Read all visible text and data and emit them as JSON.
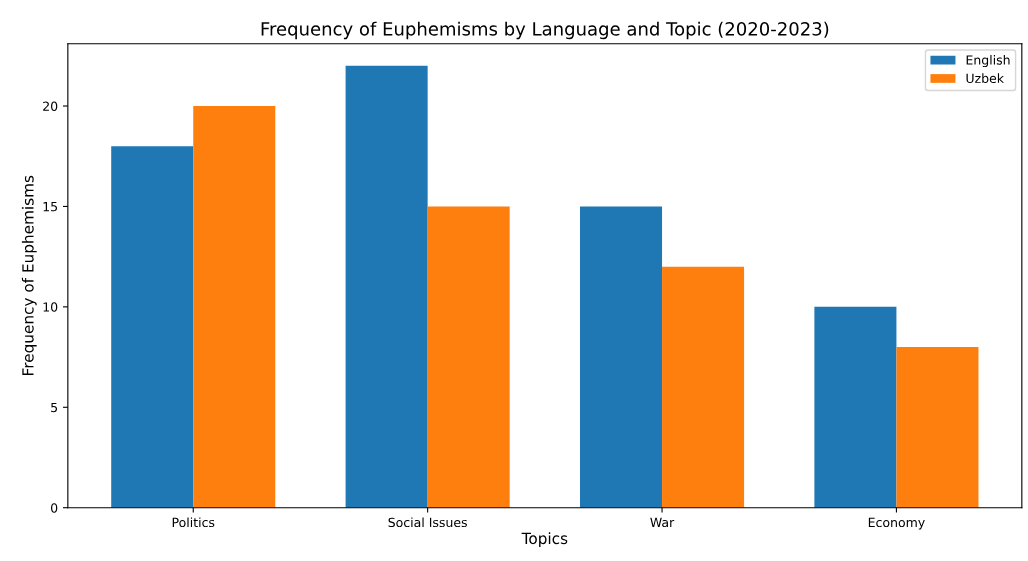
{
  "chart_data": {
    "type": "bar",
    "title": "Frequency of Euphemisms by Language and Topic (2020-2023)",
    "xlabel": "Topics",
    "ylabel": "Frequency of Euphemisms",
    "categories": [
      "Politics",
      "Social Issues",
      "War",
      "Economy"
    ],
    "series": [
      {
        "name": "English",
        "color": "#1f77b4",
        "values": [
          18,
          22,
          15,
          10
        ]
      },
      {
        "name": "Uzbek",
        "color": "#ff7f0e",
        "values": [
          20,
          15,
          12,
          8
        ]
      }
    ],
    "ylim": [
      0,
      23.1
    ],
    "yticks": [
      0,
      5,
      10,
      15,
      20
    ],
    "grid": false,
    "legend": "top right"
  }
}
